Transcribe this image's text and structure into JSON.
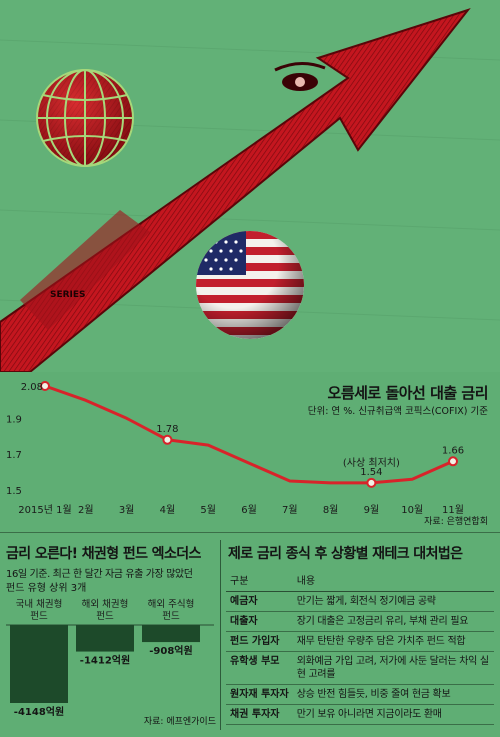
{
  "illustration": {
    "arrow_text": "SERIES",
    "icons": [
      "globe-icon",
      "us-flag-globe-icon",
      "rising-arrow-icon"
    ]
  },
  "line_chart": {
    "title": "오름세로 돌아선 대출 금리",
    "unit": "단위: 연 %. 신규취급액 코픽스(COFIX) 기준",
    "source": "자료: 은행연합회",
    "annotation": "(사상 최저치)"
  },
  "chart_data": [
    {
      "type": "line",
      "title": "오름세로 돌아선 대출 금리",
      "categories": [
        "2015년 1월",
        "2월",
        "3월",
        "4월",
        "5월",
        "6월",
        "7월",
        "8월",
        "9월",
        "10월",
        "11월"
      ],
      "series": [
        {
          "values": [
            2.08,
            2.0,
            1.9,
            1.78,
            1.75,
            1.65,
            1.55,
            1.54,
            1.54,
            1.56,
            1.66
          ]
        }
      ],
      "labeled_points": [
        {
          "category": "2015년 1월",
          "label": "2.08"
        },
        {
          "category": "4월",
          "label": "1.78"
        },
        {
          "category": "9월",
          "label": "1.54"
        },
        {
          "category": "11월",
          "label": "1.66"
        }
      ],
      "yticks": [
        "1.5",
        "1.7",
        "1.9"
      ],
      "ylim": [
        1.5,
        2.08
      ],
      "grid": false,
      "colors": {
        "line": "#d8232a",
        "marker_fill": "#f1f1e6"
      }
    },
    {
      "type": "bar",
      "title": "금리 오른다! 채권형 펀드 엑소더스",
      "categories": [
        "국내 채권형\n펀드",
        "해외 채권형\n펀드",
        "해외 주식형\n펀드"
      ],
      "values": [
        -4148,
        -1412,
        -908
      ],
      "value_labels": [
        "-4148억원",
        "-1412억원",
        "-908억원"
      ],
      "ylim": [
        -4148,
        0
      ],
      "colors": {
        "bar": "#1d4a2a"
      }
    }
  ],
  "bar_panel": {
    "title": "금리 오른다! 채권형 펀드 엑소더스",
    "subtitle_1": "16일 기준. 최근 한 달간 자금 유출 가장 많았던",
    "subtitle_2": "펀드 유형 상위 3개",
    "source": "자료: 에프엔가이드"
  },
  "strategy_panel": {
    "title": "제로 금리 종식 후 상황별 재테크 대처법은",
    "headers": [
      "구분",
      "내용"
    ],
    "rows": [
      {
        "label": "예금자",
        "text": "만기는 짧게, 회전식 정기예금 공략"
      },
      {
        "label": "대출자",
        "text": "장기 대출은 고정금리 유리, 부채 관리 필요"
      },
      {
        "label": "펀드 가입자",
        "text": "재무 탄탄한 우량주 담은 가치주 펀드 적합"
      },
      {
        "label": "유학생 부모",
        "text": "외화예금 가입 고려, 저가에 사둔 달러는 차익 실현 고려를"
      },
      {
        "label": "원자재 투자자",
        "text": "상승 반전 힘들듯, 비중 줄여 현금 확보"
      },
      {
        "label": "채권 투자자",
        "text": "만기 보유 아니라면 지금이라도 환매"
      }
    ]
  }
}
